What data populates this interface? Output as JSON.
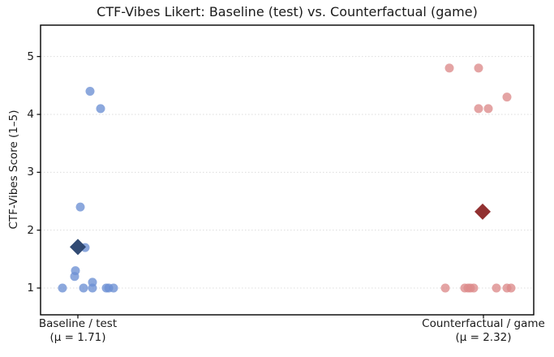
{
  "chart_data": {
    "type": "scatter",
    "title": "CTF-Vibes Likert: Baseline (test) vs. Counterfactual (game)",
    "ylabel": "CTF-Vibes Score (1–5)",
    "xlabel": "",
    "yticks": [
      "1",
      "2",
      "3",
      "4",
      "5"
    ],
    "ylim": [
      0.54,
      5.54
    ],
    "grid": "horizontal-dotted",
    "legend_position": "none",
    "marker_styles": {
      "point": "circle",
      "group_mean": "diamond"
    },
    "colors": {
      "baseline_point": "#6b8fd4",
      "baseline_mean": "#2b4570",
      "counterfactual_point": "#dd8a8a",
      "counterfactual_mean": "#8e2a2a",
      "gridline": "#dcdcdc",
      "axis": "#000000",
      "text": "#1a1a1a"
    },
    "groups": [
      {
        "id": "baseline",
        "label": "Baseline / test",
        "mu_label": "(μ = 1.71)",
        "mean": 1.71,
        "mean_x": 0.0,
        "n": 13,
        "points": [
          [
            0.03,
            4.4
          ],
          [
            0.056,
            4.1
          ],
          [
            0.006,
            2.4
          ],
          [
            0.018,
            1.7
          ],
          [
            -0.006,
            1.3
          ],
          [
            -0.008,
            1.2
          ],
          [
            0.036,
            1.1
          ],
          [
            -0.038,
            1.0
          ],
          [
            0.014,
            1.0
          ],
          [
            0.036,
            1.0
          ],
          [
            0.07,
            1.0
          ],
          [
            0.076,
            1.0
          ],
          [
            0.088,
            1.0
          ]
        ]
      },
      {
        "id": "counterfactual",
        "label": "Counterfactual / game",
        "mu_label": "(μ = 2.32)",
        "mean": 2.32,
        "mean_x": 0.998,
        "n": 13,
        "points": [
          [
            0.916,
            4.8
          ],
          [
            0.988,
            4.8
          ],
          [
            1.058,
            4.3
          ],
          [
            0.988,
            4.1
          ],
          [
            1.012,
            4.1
          ],
          [
            0.906,
            1.0
          ],
          [
            0.954,
            1.0
          ],
          [
            0.962,
            1.0
          ],
          [
            0.968,
            1.0
          ],
          [
            0.976,
            1.0
          ],
          [
            1.032,
            1.0
          ],
          [
            1.058,
            1.0
          ],
          [
            1.068,
            1.0
          ]
        ]
      }
    ]
  }
}
